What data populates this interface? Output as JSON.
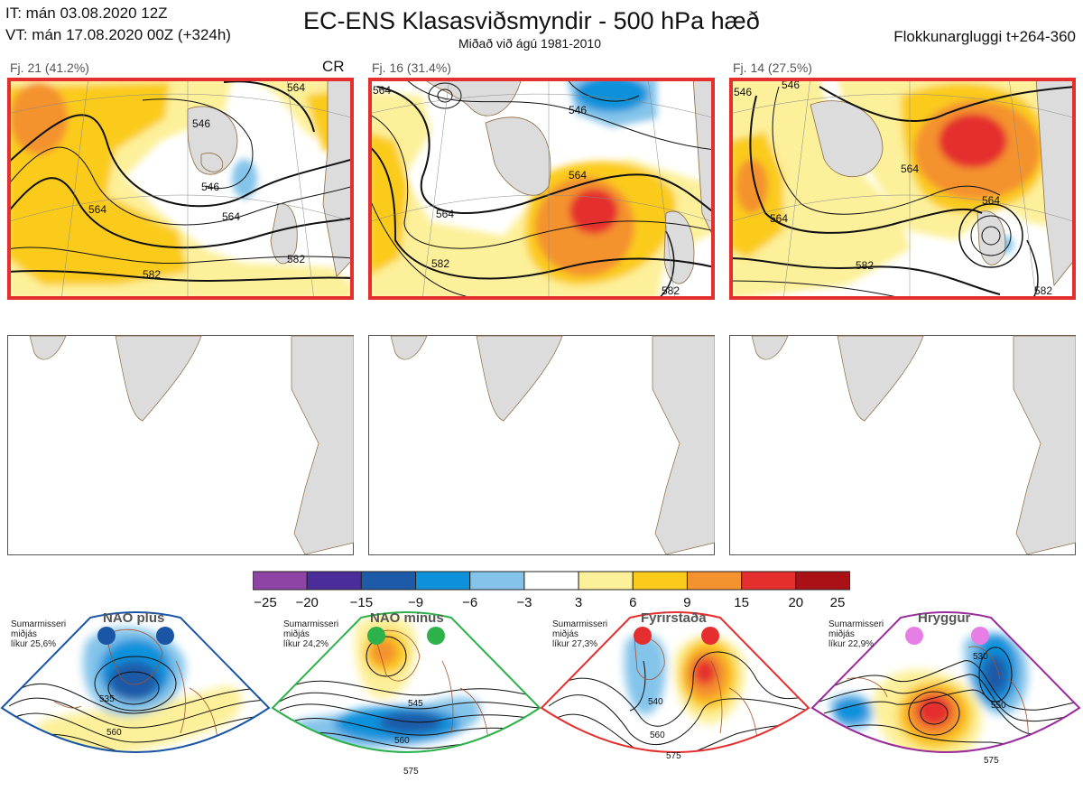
{
  "header": {
    "it": "IT: mán 03.08.2020 12Z",
    "vt": "VT: mán 17.08.2020 00Z  (+324h)",
    "title": "EC-ENS Klasasviðsmyndir - 500 hPa hæð",
    "subtitle": "Miðað við ágú 1981-2010",
    "window": "Flokkunargluggi t+264-360"
  },
  "clusters": [
    {
      "label": "Fj. 21 (41.2%)",
      "tag": "CR",
      "highlighted": true,
      "contour_labels": [
        "564",
        "546",
        "564",
        "582",
        "546",
        "564",
        "582"
      ]
    },
    {
      "label": "Fj. 16 (31.4%)",
      "tag": "",
      "highlighted": true,
      "contour_labels": [
        "564",
        "564",
        "582",
        "564",
        "546",
        "582"
      ]
    },
    {
      "label": "Fj. 14 (27.5%)",
      "tag": "",
      "highlighted": true,
      "contour_labels": [
        "546",
        "564",
        "564",
        "582",
        "582",
        "546",
        "564"
      ]
    }
  ],
  "lower_maps": [
    {
      "id": "lower-1"
    },
    {
      "id": "lower-2"
    },
    {
      "id": "lower-3"
    }
  ],
  "colorbar": {
    "ticks": [
      "−25",
      "−20",
      "−15",
      "−9",
      "−6",
      "−3",
      "3",
      "6",
      "9",
      "15",
      "20",
      "25"
    ],
    "colors": [
      "#8e44a4",
      "#4a2d9a",
      "#1d5aa8",
      "#0d91db",
      "#84c4ea",
      "#ffffff",
      "#fdf09a",
      "#fbcb1c",
      "#f4922f",
      "#e52f2f",
      "#aa1117"
    ]
  },
  "regimes": [
    {
      "title": "NAO plús",
      "desc": "Sumarmisseri\nmiðjás\nlíkur 25,6%",
      "color": "#1a55a6",
      "contour_labels": [
        "535",
        "560"
      ]
    },
    {
      "title": "NAO mínus",
      "desc": "Sumarmisseri\nmiðjás\nlíkur 24,2%",
      "color": "#2db14a",
      "contour_labels": [
        "545",
        "560",
        "575"
      ]
    },
    {
      "title": "Fyrirstaða",
      "desc": "Sumarmisseri\nmiðjás\nlíkur 27,3%",
      "color": "#e52f2f",
      "contour_labels": [
        "540",
        "560",
        "575"
      ]
    },
    {
      "title": "Hryggur",
      "desc": "Sumarmisseri\nmiðjás\nlíkur 22,9%",
      "color": "#9b2c9c",
      "contour_labels": [
        "530",
        "550",
        "575"
      ]
    }
  ]
}
